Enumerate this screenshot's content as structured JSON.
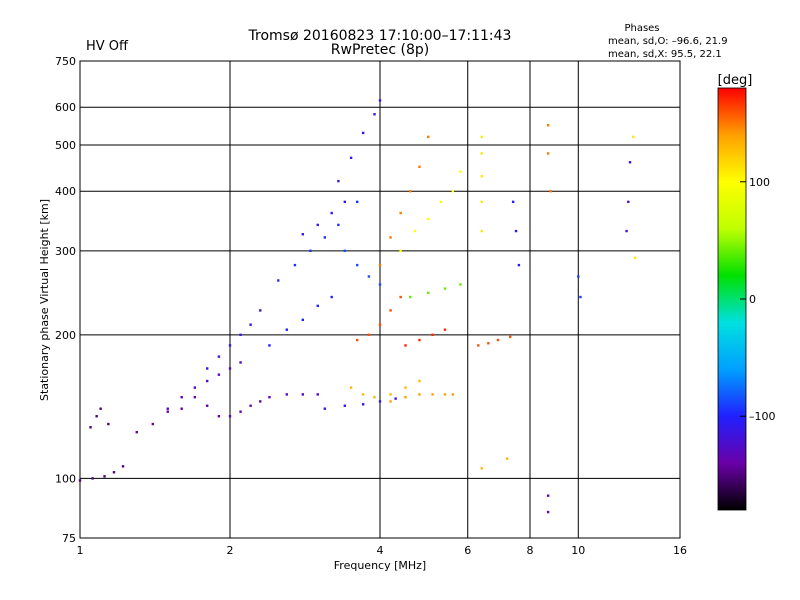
{
  "header": {
    "title": "Tromsø 20160823 17:10:00–17:11:43",
    "subtitle": "RwPretec (8p)",
    "status": "HV Off",
    "status_color": "#cc0000",
    "phases": {
      "title": "Phases",
      "line_o": "mean, sd,O: –96.6, 21.9",
      "line_x": "mean, sd,X:  95.5, 22.1"
    }
  },
  "chart_data": {
    "type": "scatter",
    "title": "Tromsø 20160823 17:10:00–17:11:43",
    "subtitle": "RwPretec (8p)",
    "xlabel": "Frequency [MHz]",
    "ylabel": "Stationary phase Virtual Height [km]",
    "x_scale": "log",
    "y_scale": "log",
    "xlim": [
      1,
      16
    ],
    "ylim": [
      75,
      750
    ],
    "x_ticks": [
      1,
      2,
      4,
      6,
      8,
      10,
      16
    ],
    "x_tick_labels": [
      "1",
      "2",
      "4",
      "6",
      "8",
      "10",
      "16"
    ],
    "y_ticks": [
      75,
      100,
      200,
      300,
      400,
      500,
      600,
      750
    ],
    "y_tick_labels": [
      "75",
      "100",
      "200",
      "300",
      "400",
      "500",
      "600",
      "750"
    ],
    "grid": true,
    "colorbar": {
      "label": "[deg]",
      "min": -180,
      "max": 180,
      "ticks": [
        100,
        0,
        -100
      ],
      "tick_labels": [
        "100",
        "0",
        "–100"
      ],
      "colors": [
        "#000000",
        "#6a00a8",
        "#2020ff",
        "#00a0ff",
        "#00e0e0",
        "#00e000",
        "#c0ff00",
        "#ffff00",
        "#ffa000",
        "#ff0000"
      ]
    },
    "series": [
      {
        "traces": [
          {
            "f": [
              1.0,
              1.06,
              1.12,
              1.17,
              1.22
            ],
            "h": [
              99,
              100,
              101,
              103,
              106
            ],
            "p": -150
          },
          {
            "f": [
              1.05,
              1.08,
              1.1,
              1.14
            ],
            "h": [
              128,
              135,
              140,
              130
            ],
            "p": -150
          },
          {
            "f": [
              1.3,
              1.4,
              1.5,
              1.6,
              1.7,
              1.8,
              1.9
            ],
            "h": [
              125,
              130,
              138,
              140,
              148,
              142,
              135
            ],
            "p": -140
          },
          {
            "f": [
              1.5,
              1.6,
              1.7,
              1.8,
              1.9,
              2.0,
              2.1
            ],
            "h": [
              140,
              148,
              155,
              160,
              165,
              170,
              175
            ],
            "p": -130
          },
          {
            "f": [
              1.8,
              1.9,
              2.0,
              2.1,
              2.2,
              2.3
            ],
            "h": [
              170,
              180,
              190,
              200,
              210,
              225
            ],
            "p": -115
          },
          {
            "f": [
              2.0,
              2.1,
              2.2,
              2.3,
              2.4,
              2.6,
              2.8,
              3.0
            ],
            "h": [
              135,
              138,
              142,
              145,
              148,
              150,
              150,
              150
            ],
            "p": -130
          },
          {
            "f": [
              2.4,
              2.6,
              2.8,
              3.0,
              3.2
            ],
            "h": [
              190,
              205,
              215,
              230,
              240
            ],
            "p": -100
          },
          {
            "f": [
              2.5,
              2.7,
              2.9,
              3.1,
              3.3,
              3.6
            ],
            "h": [
              260,
              280,
              300,
              320,
              340,
              380
            ],
            "p": -95
          },
          {
            "f": [
              2.8,
              3.0,
              3.2,
              3.4
            ],
            "h": [
              325,
              340,
              360,
              380
            ],
            "p": -110
          },
          {
            "f": [
              3.3,
              3.5,
              3.7,
              3.9,
              4.0
            ],
            "h": [
              420,
              470,
              530,
              580,
              620
            ],
            "p": -110
          },
          {
            "f": [
              3.4,
              3.6,
              3.8,
              4.0
            ],
            "h": [
              300,
              280,
              265,
              255
            ],
            "p": -85
          },
          {
            "f": [
              3.1,
              3.4,
              3.7,
              4.0,
              4.3
            ],
            "h": [
              140,
              142,
              143,
              145,
              147
            ],
            "p": -115
          },
          {
            "f": [
              3.5,
              3.7,
              3.9,
              4.2,
              4.5,
              4.8
            ],
            "h": [
              155,
              150,
              148,
              150,
              155,
              160
            ],
            "p": 130
          },
          {
            "f": [
              4.2,
              4.5,
              4.8,
              5.1,
              5.4,
              5.6
            ],
            "h": [
              145,
              148,
              150,
              150,
              150,
              150
            ],
            "p": 140
          },
          {
            "f": [
              3.6,
              3.8,
              4.0,
              4.2,
              4.4
            ],
            "h": [
              195,
              200,
              210,
              225,
              240
            ],
            "p": 160
          },
          {
            "f": [
              4.0,
              4.2,
              4.4,
              4.6,
              4.8,
              5.0
            ],
            "h": [
              280,
              320,
              360,
              400,
              450,
              520
            ],
            "p": 150
          },
          {
            "f": [
              4.4,
              4.7,
              5.0,
              5.3,
              5.6,
              5.8
            ],
            "h": [
              300,
              330,
              350,
              380,
              400,
              440
            ],
            "p": 100
          },
          {
            "f": [
              4.6,
              5.0,
              5.4,
              5.8
            ],
            "h": [
              240,
              245,
              250,
              255
            ],
            "p": 40
          },
          {
            "f": [
              4.5,
              4.8,
              5.1,
              5.4
            ],
            "h": [
              190,
              195,
              200,
              205
            ],
            "p": 170
          },
          {
            "f": [
              6.3,
              6.6,
              6.9,
              7.3
            ],
            "h": [
              190,
              192,
              195,
              198
            ],
            "p": 160
          },
          {
            "f": [
              6.4,
              6.4,
              6.4,
              6.4,
              6.4
            ],
            "h": [
              520,
              480,
              430,
              380,
              330
            ],
            "p": 110
          },
          {
            "f": [
              7.4,
              7.5,
              7.6
            ],
            "h": [
              380,
              330,
              280
            ],
            "p": -100
          },
          {
            "f": [
              8.7,
              8.7,
              8.8
            ],
            "h": [
              550,
              480,
              400
            ],
            "p": 150
          },
          {
            "f": [
              8.7,
              8.7
            ],
            "h": [
              85,
              92
            ],
            "p": -130
          },
          {
            "f": [
              10.0,
              10.1
            ],
            "h": [
              265,
              240
            ],
            "p": -90
          },
          {
            "f": [
              12.5,
              12.6,
              12.7
            ],
            "h": [
              330,
              380,
              460
            ],
            "p": -120
          },
          {
            "f": [
              12.9,
              13.0
            ],
            "h": [
              520,
              290
            ],
            "p": 110
          },
          {
            "f": [
              6.4,
              7.2
            ],
            "h": [
              105,
              110
            ],
            "p": 130
          }
        ]
      }
    ]
  }
}
